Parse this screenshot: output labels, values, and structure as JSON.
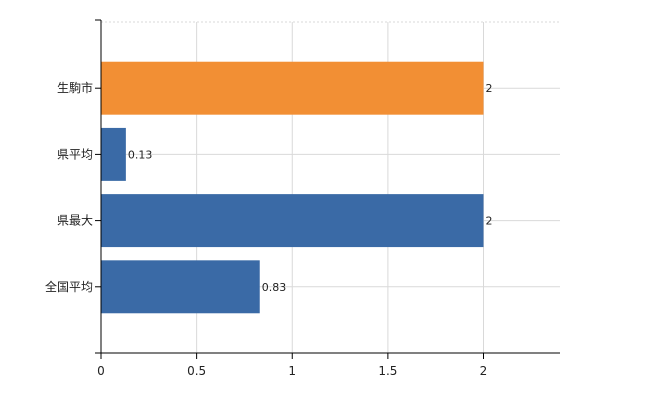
{
  "chart_data": {
    "type": "bar",
    "orientation": "horizontal",
    "categories": [
      "生駒市",
      "県平均",
      "県最大",
      "全国平均"
    ],
    "values": [
      2,
      0.13,
      2,
      0.83
    ],
    "data_labels": [
      "2",
      "0.13",
      "2",
      "0.83"
    ],
    "x_ticks": [
      "0",
      "0.5",
      "1",
      "1.5",
      "2"
    ],
    "x_tick_values": [
      0,
      0.5,
      1,
      1.5,
      2
    ],
    "xlim": [
      0,
      2.4
    ],
    "grid": true,
    "legend": "none",
    "colors": {
      "highlight": "#f28f34",
      "default": "#3a6aa6",
      "grid": "#d9d9d9",
      "axis": "#000000"
    },
    "bar_colors": [
      "#f28f34",
      "#3a6aa6",
      "#3a6aa6",
      "#3a6aa6"
    ],
    "xlabel": "",
    "ylabel": "",
    "title": ""
  }
}
